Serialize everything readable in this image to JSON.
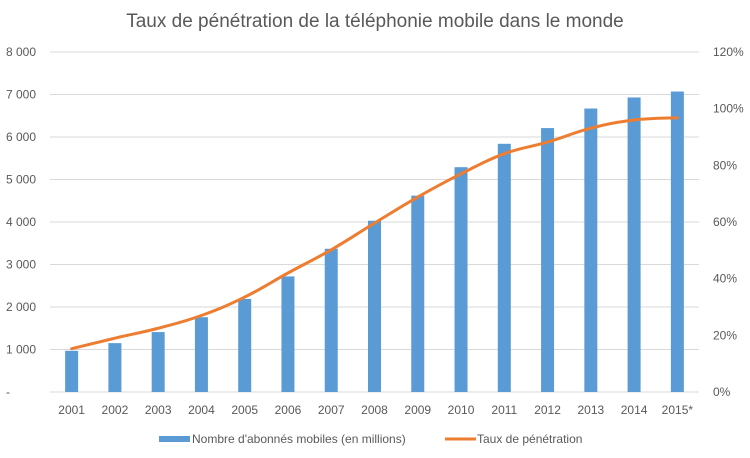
{
  "chart_data": {
    "type": "bar",
    "title": "Taux de pénétration de la téléphonie mobile dans le monde",
    "categories": [
      "2001",
      "2002",
      "2003",
      "2004",
      "2005",
      "2006",
      "2007",
      "2008",
      "2009",
      "2010",
      "2011",
      "2012",
      "2013",
      "2014",
      "2015*"
    ],
    "series": [
      {
        "name": "Nombre d'abonnés mobiles (en millions)",
        "type": "bar",
        "axis": "left",
        "color": "#5B9BD5",
        "values": [
          970,
          1150,
          1410,
          1760,
          2190,
          2720,
          3370,
          4030,
          4620,
          5290,
          5840,
          6210,
          6670,
          6930,
          7070
        ]
      },
      {
        "name": "Taux de pénétration",
        "type": "line",
        "axis": "right",
        "color": "#ED7D31",
        "values": [
          15.3,
          19.0,
          22.5,
          27.0,
          33.5,
          42.0,
          50.2,
          59.6,
          68.8,
          77.0,
          84.1,
          88.2,
          93.1,
          96.0,
          96.8
        ]
      }
    ],
    "y_left": {
      "label": "",
      "range": [
        0,
        8000
      ],
      "ticks": [
        0,
        1000,
        2000,
        3000,
        4000,
        5000,
        6000,
        7000,
        8000
      ],
      "tick_labels": [
        "-",
        "1 000",
        "2 000",
        "3 000",
        "4 000",
        "5 000",
        "6 000",
        "7 000",
        "8 000"
      ]
    },
    "y_right": {
      "label": "",
      "range": [
        0,
        120
      ],
      "ticks": [
        0,
        20,
        40,
        60,
        80,
        100,
        120
      ],
      "tick_labels": [
        "0%",
        "20%",
        "40%",
        "60%",
        "80%",
        "100%",
        "120%"
      ]
    },
    "xlabel": "",
    "grid": true,
    "gridline_color": "#D9D9D9",
    "legend_position": "bottom"
  }
}
